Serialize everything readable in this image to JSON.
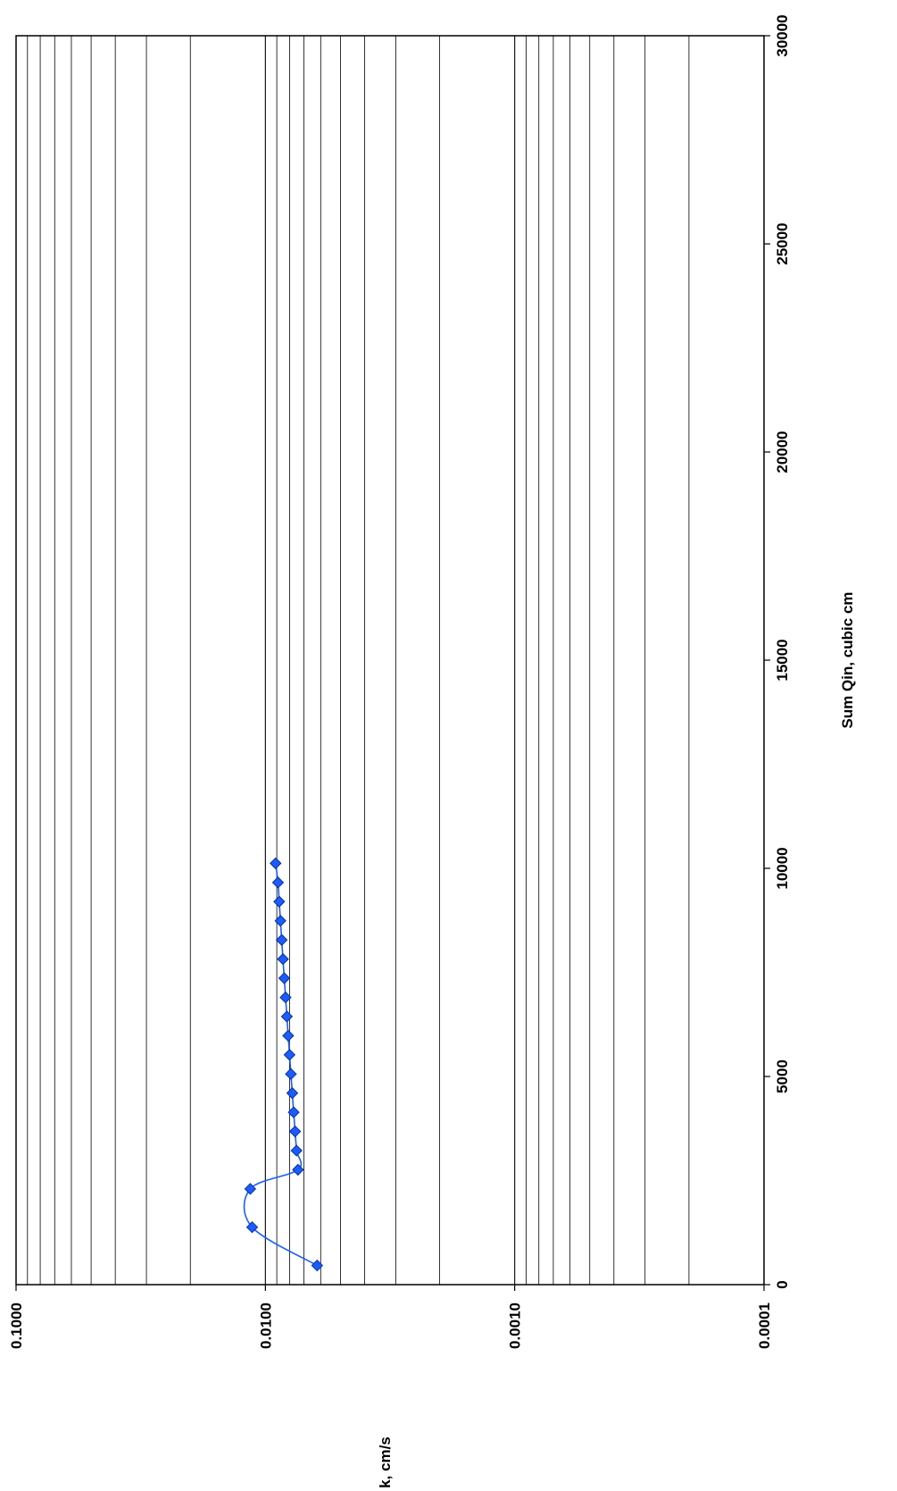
{
  "chart_data": {
    "type": "scatter",
    "orientation": "rotated-90-clockwise",
    "title": "",
    "xlabel": "Sum Qin, cubic cm",
    "ylabel": "k, cm/s",
    "xlim": [
      0,
      30000
    ],
    "ylim": [
      0.0001,
      0.1
    ],
    "y_scale": "log",
    "grid": "horizontal-minor-and-major",
    "legend": "none",
    "x_ticks": [
      "0",
      "5000",
      "10000",
      "15000",
      "20000",
      "25000",
      "30000"
    ],
    "y_ticks": [
      "0.0001",
      "0.0010",
      "0.0100",
      "0.1000"
    ],
    "series": [
      {
        "color": "#1a5cff",
        "marker": "diamond",
        "smoothed": true,
        "x": [
          460,
          1380,
          2300,
          2760,
          3220,
          3680,
          4140,
          4600,
          5060,
          5520,
          5980,
          6440,
          6900,
          7360,
          7820,
          8280,
          8740,
          9200,
          9660,
          10120
        ],
        "y": [
          0.0062,
          0.0113,
          0.0115,
          0.0074,
          0.0075,
          0.0076,
          0.0077,
          0.0078,
          0.0079,
          0.008,
          0.0081,
          0.0082,
          0.0083,
          0.0084,
          0.0085,
          0.0086,
          0.0087,
          0.0088,
          0.0089,
          0.0091
        ]
      }
    ]
  }
}
